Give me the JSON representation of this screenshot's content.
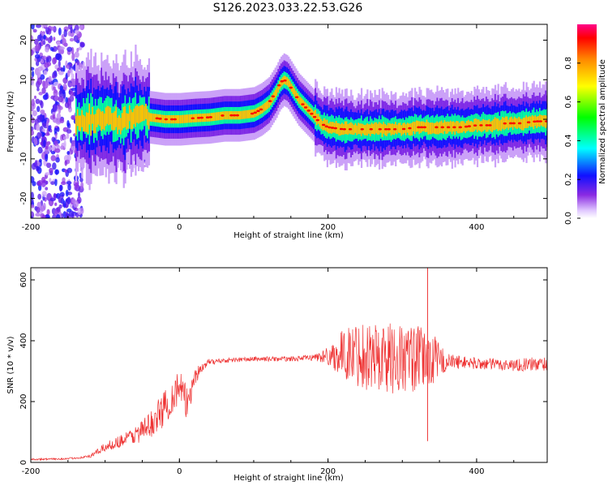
{
  "title": "S126.2023.033.22.53.G26",
  "chart_data": [
    {
      "type": "heatmap",
      "xlabel": "Height of straight line (km)",
      "ylabel": "Frequency (Hz)",
      "xlim": [
        -200,
        495
      ],
      "ylim": [
        -25,
        24
      ],
      "x_ticks": [
        -200,
        0,
        200,
        400
      ],
      "y_ticks": [
        -20,
        -10,
        0,
        10,
        20
      ],
      "grid": false,
      "colorbar": {
        "label": "Normalized spectral amplitude",
        "range": [
          0,
          1
        ],
        "ticks": [
          "0.0",
          "0.2",
          "0.4",
          "0.6",
          "0.8"
        ]
      },
      "ridge": {
        "x": [
          -200,
          -180,
          -160,
          -140,
          -120,
          -100,
          -80,
          -60,
          -40,
          -20,
          0,
          20,
          40,
          60,
          80,
          100,
          110,
          120,
          130,
          135,
          140,
          145,
          150,
          160,
          170,
          180,
          190,
          200,
          220,
          240,
          260,
          280,
          300,
          320,
          340,
          360,
          380,
          400,
          420,
          440,
          460,
          480,
          495
        ],
        "y": [
          0,
          0,
          0,
          0,
          0,
          0.5,
          -0.5,
          1,
          0.5,
          0,
          0,
          0.3,
          0.5,
          1,
          1,
          1.5,
          2.5,
          4,
          7,
          9,
          10,
          9.5,
          8,
          5,
          3,
          1,
          -1,
          -2,
          -2.5,
          -2.5,
          -2.5,
          -2.5,
          -2.5,
          -2,
          -2,
          -2,
          -2,
          -1.5,
          -1.5,
          -1,
          -1,
          -0.5,
          -0.5
        ]
      }
    },
    {
      "type": "line",
      "xlabel": "Height of straight line (km)",
      "ylabel": "SNR (10 * v/v)",
      "xlim": [
        -200,
        495
      ],
      "ylim": [
        0,
        640
      ],
      "x_ticks": [
        -200,
        0,
        200,
        400
      ],
      "y_ticks": [
        0,
        200,
        400,
        600
      ],
      "grid": false,
      "color": "#ee3333",
      "series": [
        {
          "x": [
            -200,
            -150,
            -120,
            -100,
            -80,
            -60,
            -40,
            -20,
            0,
            10,
            20,
            30,
            40,
            60,
            100,
            150,
            180,
            200,
            220,
            240,
            260,
            280,
            300,
            320,
            340,
            360,
            380,
            400,
            450,
            495
          ],
          "values": [
            10,
            12,
            20,
            50,
            70,
            90,
            120,
            180,
            250,
            190,
            280,
            310,
            330,
            335,
            340,
            340,
            345,
            350,
            355,
            360,
            350,
            345,
            340,
            340,
            340,
            330,
            330,
            325,
            320,
            325
          ],
          "amplitude": [
            3,
            3,
            5,
            15,
            20,
            30,
            45,
            60,
            60,
            60,
            40,
            12,
            10,
            8,
            8,
            8,
            10,
            30,
            80,
            110,
            120,
            120,
            120,
            110,
            90,
            30,
            20,
            20,
            20,
            25
          ]
        }
      ]
    }
  ]
}
